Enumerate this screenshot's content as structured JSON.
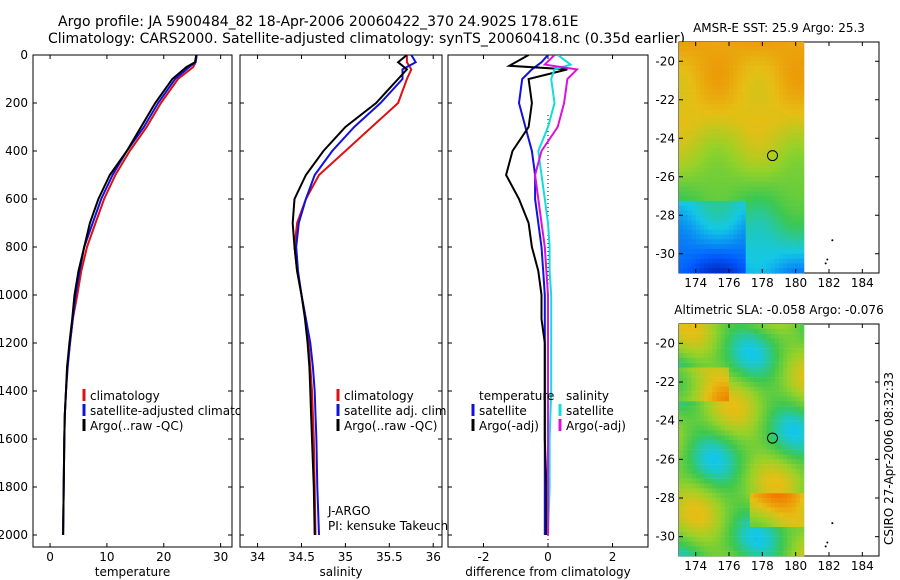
{
  "header": {
    "line1": "Argo profile: JA 5900484_82 18-Apr-2006 20060422_370 24.902S 178.61E",
    "line2": "Climatology: CARS2000. Satellite-adjusted climatology: synTS_20060418.nc (0.35d earlier)"
  },
  "colors": {
    "clim": "#dd1111",
    "sat": "#1111dd",
    "argo": "#000000",
    "sat_sal": "#11dddd",
    "argo_sal": "#dd11dd"
  },
  "chart_data": [
    {
      "type": "line",
      "id": "temperature",
      "xlabel": "temperature",
      "ylabel": "",
      "xlim": [
        -3,
        32
      ],
      "ylim": [
        2050,
        0
      ],
      "xticks": [
        0,
        10,
        20,
        30
      ],
      "yticks": [
        0,
        200,
        400,
        600,
        800,
        1000,
        1200,
        1400,
        1600,
        1800,
        2000
      ],
      "legend": [
        "climatology",
        "satellite-adjusted climatology",
        "Argo(..raw -QC)"
      ],
      "series": [
        {
          "name": "climatology",
          "color": "clim",
          "x": [
            25.8,
            25.6,
            25.2,
            22.5,
            19.5,
            17.0,
            14.0,
            11.5,
            9.5,
            8.0,
            6.5,
            5.5,
            4.8,
            4.0,
            3.5,
            3.0,
            2.8,
            2.6,
            2.5,
            2.4,
            2.3
          ],
          "y": [
            0,
            30,
            50,
            100,
            200,
            300,
            400,
            500,
            600,
            700,
            800,
            900,
            1000,
            1100,
            1200,
            1300,
            1400,
            1500,
            1600,
            1800,
            2000
          ]
        },
        {
          "name": "satellite-adjusted climatology",
          "color": "sat",
          "x": [
            25.8,
            25.6,
            24.5,
            22.0,
            19.0,
            16.5,
            13.5,
            11.0,
            9.0,
            7.5,
            6.0,
            5.2,
            4.5,
            4.0,
            3.5,
            3.1,
            2.8,
            2.6,
            2.5,
            2.4,
            2.3
          ],
          "y": [
            0,
            30,
            50,
            100,
            200,
            300,
            400,
            500,
            600,
            700,
            800,
            900,
            1000,
            1100,
            1200,
            1300,
            1400,
            1500,
            1600,
            1800,
            2000
          ]
        },
        {
          "name": "Argo(..raw -QC)",
          "color": "argo",
          "x": [
            25.7,
            25.5,
            24.0,
            21.5,
            18.5,
            16.0,
            13.5,
            10.5,
            8.5,
            7.0,
            6.0,
            5.0,
            4.3,
            3.9,
            3.4,
            3.0,
            2.8,
            2.6,
            2.5,
            2.4,
            2.3
          ],
          "y": [
            0,
            30,
            50,
            100,
            200,
            300,
            400,
            500,
            600,
            700,
            800,
            900,
            1000,
            1100,
            1200,
            1300,
            1400,
            1500,
            1600,
            1800,
            2000
          ]
        }
      ]
    },
    {
      "type": "line",
      "id": "salinity",
      "xlabel": "salinity",
      "xlim": [
        33.8,
        36.1
      ],
      "ylim": [
        2050,
        0
      ],
      "xticks": [
        34,
        34.5,
        35,
        35.5,
        36
      ],
      "xticklabels": [
        "34",
        "34.5",
        "35",
        "35.5",
        "36"
      ],
      "legend": [
        "climatology",
        "satellite adj. clim.",
        "Argo(..raw -QC)"
      ],
      "annotation": [
        "J-ARGO",
        "PI: kensuke Takeuchi"
      ],
      "series": [
        {
          "name": "climatology",
          "color": "clim",
          "x": [
            35.7,
            35.7,
            35.75,
            35.7,
            35.6,
            35.3,
            35.0,
            34.7,
            34.55,
            34.45,
            34.42,
            34.45,
            34.5,
            34.55,
            34.58,
            34.6,
            34.62,
            34.63,
            34.64,
            34.65,
            34.66
          ],
          "y": [
            0,
            30,
            60,
            100,
            200,
            300,
            400,
            500,
            600,
            700,
            800,
            900,
            1000,
            1100,
            1200,
            1300,
            1400,
            1500,
            1600,
            1800,
            2000
          ]
        },
        {
          "name": "satellite adj. clim.",
          "color": "sat",
          "x": [
            35.75,
            35.8,
            35.65,
            35.65,
            35.4,
            35.1,
            34.85,
            34.65,
            34.55,
            34.47,
            34.44,
            34.46,
            34.5,
            34.55,
            34.6,
            34.63,
            34.65,
            34.66,
            34.67,
            34.68,
            34.7
          ],
          "y": [
            0,
            30,
            60,
            100,
            200,
            300,
            400,
            500,
            600,
            700,
            800,
            900,
            1000,
            1100,
            1200,
            1300,
            1400,
            1500,
            1600,
            1800,
            2000
          ]
        },
        {
          "name": "Argo(..raw -QC)",
          "color": "argo",
          "x": [
            35.7,
            35.6,
            35.7,
            35.6,
            35.35,
            35.0,
            34.75,
            34.55,
            34.42,
            34.4,
            34.42,
            34.45,
            34.5,
            34.54,
            34.57,
            34.59,
            34.6,
            34.61,
            34.62,
            34.64,
            34.65
          ],
          "y": [
            0,
            30,
            60,
            100,
            200,
            300,
            400,
            500,
            600,
            700,
            800,
            900,
            1000,
            1100,
            1200,
            1300,
            1400,
            1500,
            1600,
            1800,
            2000
          ]
        }
      ]
    },
    {
      "type": "line",
      "id": "difference",
      "xlabel": "difference from climatology",
      "xlim": [
        -3.1,
        3.1
      ],
      "ylim": [
        2050,
        0
      ],
      "xticks": [
        -2,
        0,
        2
      ],
      "legend_temp": [
        "temperature",
        "satellite",
        "Argo(-adj)"
      ],
      "legend_sal": [
        "salinity",
        "satellite",
        "Argo(-adj)"
      ],
      "series": [
        {
          "name": "temperature satellite",
          "color": "sat",
          "x": [
            0,
            -0.2,
            -0.5,
            -0.8,
            -0.9,
            -0.7,
            -0.5,
            -0.4,
            -0.4,
            -0.3,
            -0.2,
            -0.15,
            -0.1,
            -0.1,
            -0.1,
            -0.1,
            -0.1,
            -0.1,
            -0.1,
            -0.1
          ],
          "y": [
            0,
            30,
            60,
            100,
            200,
            300,
            400,
            500,
            600,
            700,
            800,
            900,
            1000,
            1100,
            1200,
            1400,
            1600,
            1800,
            1900,
            2000
          ]
        },
        {
          "name": "temperature Argo(-adj)",
          "color": "argo",
          "x": [
            -0.6,
            -1.2,
            0.6,
            -0.6,
            -0.5,
            -0.6,
            -1.1,
            -1.3,
            -0.9,
            -0.6,
            -0.5,
            -0.3,
            -0.2,
            -0.2,
            -0.1,
            -0.1,
            -0.1,
            -0.05,
            -0.05
          ],
          "y": [
            0,
            45,
            60,
            100,
            200,
            300,
            400,
            500,
            600,
            700,
            800,
            900,
            1000,
            1100,
            1200,
            1400,
            1600,
            1800,
            2000
          ]
        },
        {
          "name": "salinity satellite",
          "color": "sat_sal",
          "x": [
            0.3,
            0.7,
            0.2,
            0.1,
            0.2,
            0.0,
            -0.3,
            -0.2,
            -0.1,
            0.0,
            0.05,
            0.05,
            0.1,
            0.1,
            0.1,
            0.05,
            0.05,
            0.0
          ],
          "y": [
            0,
            40,
            60,
            100,
            200,
            300,
            400,
            500,
            600,
            700,
            800,
            900,
            1000,
            1200,
            1400,
            1600,
            1800,
            2000
          ]
        },
        {
          "name": "salinity Argo(-adj)",
          "color": "argo_sal",
          "x": [
            0.2,
            -0.1,
            0.9,
            0.6,
            0.5,
            0.3,
            -0.2,
            -0.4,
            -0.3,
            -0.2,
            -0.1,
            -0.05,
            0.0,
            0.0,
            0.0,
            0.0,
            0.0
          ],
          "y": [
            0,
            40,
            60,
            100,
            200,
            300,
            400,
            500,
            600,
            700,
            800,
            900,
            1000,
            1200,
            1400,
            1600,
            2000
          ]
        }
      ]
    }
  ],
  "maps": [
    {
      "id": "sst",
      "title": "AMSR-E SST: 25.9 Argo: 25.3",
      "xticks": [
        174,
        176,
        178,
        180,
        182,
        184
      ],
      "yticks": [
        -20,
        -22,
        -24,
        -26,
        -28,
        -30
      ],
      "marker": {
        "lon": 178.61,
        "lat": -24.902
      }
    },
    {
      "id": "sla",
      "title": "Altimetric SLA: -0.058 Argo: -0.076",
      "xticks": [
        174,
        176,
        178,
        180,
        182,
        184
      ],
      "yticks": [
        -20,
        -22,
        -24,
        -26,
        -28,
        -30
      ],
      "marker": {
        "lon": 178.61,
        "lat": -24.902
      }
    }
  ],
  "side_label": "CSIRO 27-Apr-2006 08:32:33"
}
